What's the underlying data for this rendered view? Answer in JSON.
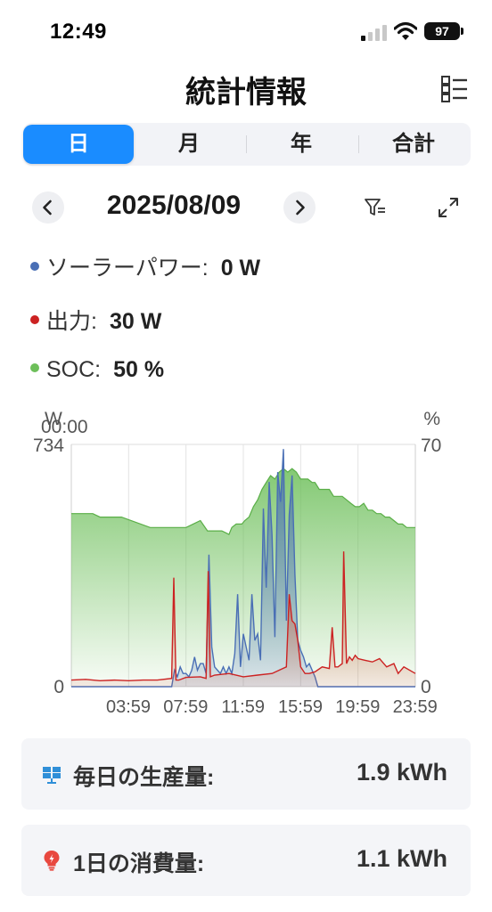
{
  "status_bar": {
    "time": "12:49",
    "battery": "97"
  },
  "header": {
    "title": "統計情報"
  },
  "tabs": [
    {
      "label": "日",
      "active": true
    },
    {
      "label": "月",
      "active": false
    },
    {
      "label": "年",
      "active": false
    },
    {
      "label": "合計",
      "active": false
    }
  ],
  "date_nav": {
    "date": "2025/08/09"
  },
  "legend": [
    {
      "label": "ソーラーパワー:",
      "value": "0 W",
      "color": "#4a6fb5"
    },
    {
      "label": "出力:",
      "value": "30 W",
      "color": "#cc2222"
    },
    {
      "label": "SOC:",
      "value": "50 %",
      "color": "#6dbf5a"
    }
  ],
  "chart_data": {
    "type": "area",
    "left_axis_unit": "W",
    "right_axis_unit": "%",
    "tooltip_time": "00:00",
    "left_ylim": [
      0,
      734
    ],
    "right_ylim": [
      0,
      70
    ],
    "left_tick_labels": [
      "734",
      "0"
    ],
    "right_tick_labels": [
      "70",
      "0"
    ],
    "x_tick_labels": [
      "03:59",
      "07:59",
      "11:59",
      "15:59",
      "19:59",
      "23:59"
    ],
    "series": [
      {
        "name": "SOC",
        "axis": "right",
        "color": "#6dbf5a",
        "x": [
          0,
          0.6,
          1.5,
          2.0,
          3.5,
          5.5,
          6.0,
          7.0,
          7.5,
          8.0,
          8.5,
          9.0,
          9.5,
          10.0,
          10.5,
          11.0,
          11.2,
          11.5,
          11.9,
          12.1,
          12.4,
          12.7,
          13.0,
          13.3,
          13.6,
          13.9,
          14.2,
          14.5,
          14.8,
          15.1,
          15.4,
          15.7,
          16.0,
          16.2,
          16.5,
          16.8,
          17.0,
          17.3,
          17.6,
          18.0,
          18.3,
          18.6,
          18.9,
          19.2,
          19.5,
          19.8,
          20.1,
          20.4,
          20.7,
          21.0,
          21.3,
          21.6,
          21.9,
          22.2,
          22.5,
          22.8,
          23.1,
          23.4,
          23.7,
          24.0
        ],
        "values": [
          50,
          50,
          50,
          49,
          49,
          46,
          46,
          46,
          46,
          46,
          47,
          48,
          45,
          45,
          45,
          44,
          46,
          47,
          47,
          48,
          49,
          52,
          54,
          57,
          59,
          61,
          60,
          62,
          63,
          62,
          63,
          62,
          60,
          60,
          60,
          59,
          59,
          57,
          57,
          57,
          55,
          55,
          55,
          54,
          53,
          52,
          52,
          53,
          51,
          51,
          50,
          50,
          49,
          49,
          48,
          47,
          47,
          46,
          46,
          46
        ]
      },
      {
        "name": "ソーラーパワー",
        "axis": "left",
        "color": "#4a6fb5",
        "x": [
          0,
          7.0,
          7.2,
          7.4,
          7.6,
          7.8,
          8.0,
          8.2,
          8.4,
          8.6,
          8.8,
          9.0,
          9.2,
          9.4,
          9.6,
          9.8,
          10.0,
          10.2,
          10.4,
          10.6,
          10.8,
          11.0,
          11.2,
          11.4,
          11.6,
          11.8,
          12.0,
          12.2,
          12.4,
          12.6,
          12.8,
          13.0,
          13.2,
          13.4,
          13.6,
          13.8,
          14.0,
          14.2,
          14.4,
          14.6,
          14.8,
          15.0,
          15.2,
          15.4,
          15.6,
          15.8,
          16.0,
          16.2,
          16.4,
          16.6,
          16.8,
          17.0,
          17.2,
          24.0
        ],
        "values": [
          0,
          0,
          50,
          30,
          60,
          40,
          40,
          30,
          50,
          90,
          50,
          70,
          70,
          40,
          400,
          120,
          60,
          50,
          40,
          60,
          40,
          60,
          40,
          100,
          280,
          60,
          160,
          120,
          80,
          280,
          140,
          160,
          80,
          540,
          300,
          620,
          460,
          150,
          650,
          560,
          720,
          200,
          520,
          640,
          340,
          140,
          110,
          90,
          60,
          70,
          50,
          30,
          0,
          0
        ]
      },
      {
        "name": "出力",
        "axis": "left",
        "color": "#cc2222",
        "x": [
          0,
          1.0,
          2.0,
          3.0,
          4.0,
          5.0,
          6.0,
          7.0,
          7.15,
          7.3,
          7.5,
          8.0,
          9.0,
          9.4,
          9.55,
          9.7,
          10.0,
          11.0,
          12.0,
          13.0,
          14.0,
          14.5,
          15.0,
          15.2,
          15.4,
          15.6,
          15.8,
          16.0,
          16.3,
          16.6,
          17.0,
          17.5,
          18.0,
          18.2,
          18.4,
          18.6,
          18.9,
          19.0,
          19.2,
          19.4,
          19.6,
          19.8,
          20.0,
          20.5,
          21.0,
          21.5,
          22.0,
          22.5,
          22.8,
          23.2,
          24.0
        ],
        "values": [
          20,
          22,
          18,
          20,
          18,
          20,
          20,
          25,
          330,
          20,
          20,
          28,
          30,
          25,
          350,
          30,
          35,
          40,
          30,
          35,
          40,
          50,
          60,
          280,
          200,
          190,
          140,
          60,
          40,
          40,
          45,
          60,
          55,
          180,
          60,
          60,
          70,
          410,
          70,
          90,
          80,
          95,
          85,
          80,
          75,
          85,
          60,
          70,
          40,
          60,
          40
        ]
      }
    ]
  },
  "cards": [
    {
      "label": "毎日の生産量:",
      "value": "1.9 kWh",
      "icon": "solar-panel-icon"
    },
    {
      "label": "1日の消費量:",
      "value": "1.1 kWh",
      "icon": "lightbulb-icon"
    }
  ]
}
